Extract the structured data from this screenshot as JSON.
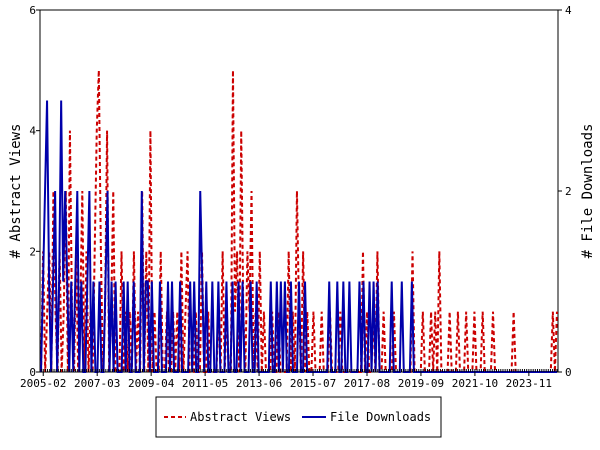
{
  "chart_data": {
    "type": "line",
    "xlabel": "",
    "ylabel_left": "# Abstract Views",
    "ylabel_right": "# File Downloads",
    "ylim_left": [
      0,
      6
    ],
    "ylim_right": [
      0,
      4
    ],
    "yticks_left": [
      "0",
      "2",
      "4",
      "6"
    ],
    "yticks_right": [
      "0",
      "2",
      "4"
    ],
    "x_tick_labels": [
      "2005-02",
      "2007-03",
      "2009-04",
      "2011-05",
      "2013-06",
      "2015-07",
      "2017-08",
      "2019-09",
      "2021-10",
      "2023-11"
    ],
    "x_start": "2005-01",
    "x_end": "2025-01",
    "grid": false,
    "legend_position": "bottom",
    "series": [
      {
        "name": "Abstract Views",
        "axis": "left",
        "color": "#cc0000",
        "style": "dashed",
        "values": [
          0,
          2,
          0,
          1,
          2,
          0,
          3,
          1,
          0,
          2,
          0,
          1,
          3,
          0,
          4,
          1,
          0,
          2,
          0,
          1,
          3,
          0,
          2,
          0,
          1,
          0,
          2,
          4,
          5,
          2,
          0,
          1,
          4,
          0,
          1,
          3,
          0,
          0,
          0,
          2,
          0,
          1,
          0,
          1,
          0,
          2,
          0,
          1,
          0,
          3,
          0,
          2,
          0,
          4,
          0,
          1,
          0,
          0,
          2,
          0,
          0,
          1,
          0,
          0,
          1,
          0,
          1,
          0,
          2,
          0,
          1,
          2,
          0,
          0,
          0,
          1,
          0,
          0,
          2,
          0,
          0,
          1,
          0,
          0,
          0,
          0,
          1,
          0,
          2,
          0,
          1,
          0,
          0,
          5,
          1,
          2,
          0,
          4,
          1,
          0,
          2,
          1,
          3,
          0,
          1,
          0,
          2,
          0,
          1,
          0,
          0,
          0,
          1,
          0,
          0,
          1,
          0,
          0,
          0,
          0,
          2,
          0,
          1,
          0,
          3,
          1,
          0,
          2,
          0,
          1,
          0,
          0,
          1,
          0,
          0,
          0,
          1,
          0,
          0,
          0,
          1,
          0,
          0,
          0,
          0,
          1,
          0,
          0,
          0,
          0,
          0,
          0,
          0,
          0,
          0,
          0,
          2,
          0,
          1,
          0,
          0,
          1,
          0,
          2,
          0,
          0,
          1,
          0,
          0,
          0,
          0,
          1,
          0,
          0,
          0,
          0,
          0,
          0,
          0,
          0,
          2,
          0,
          0,
          0,
          0,
          1,
          0,
          0,
          0,
          1,
          0,
          1,
          0,
          2,
          0,
          0,
          0,
          0,
          1,
          0,
          0,
          0,
          1,
          0,
          0,
          0,
          1,
          0,
          0,
          0,
          1,
          0,
          0,
          0,
          1,
          0,
          0,
          0,
          0,
          1,
          0,
          0,
          0,
          0,
          0,
          0,
          0,
          0,
          0,
          1,
          0,
          0,
          0,
          0,
          0,
          0,
          0,
          0,
          0,
          0,
          0,
          0,
          0,
          0,
          0,
          0,
          0,
          0,
          1,
          0,
          1
        ]
      },
      {
        "name": "File Downloads",
        "axis": "right",
        "color": "#0000aa",
        "style": "solid",
        "values": [
          0,
          1,
          2,
          3,
          1,
          0,
          1,
          2,
          0,
          1,
          3,
          1,
          2,
          1,
          0,
          1,
          0,
          1,
          2,
          0,
          1,
          0,
          0,
          1,
          2,
          0,
          1,
          0,
          0,
          1,
          0,
          0,
          1,
          2,
          0,
          1,
          0,
          1,
          0,
          0,
          0,
          1,
          0,
          1,
          0,
          0,
          1,
          0,
          0,
          0,
          2,
          0,
          1,
          1,
          0,
          1,
          0,
          0,
          0,
          1,
          0,
          0,
          0,
          1,
          0,
          1,
          0,
          0,
          0,
          1,
          0,
          0,
          0,
          0,
          1,
          0,
          1,
          0,
          0,
          2,
          1,
          0,
          1,
          0,
          0,
          1,
          0,
          0,
          1,
          0,
          0,
          0,
          1,
          0,
          0,
          1,
          0,
          0,
          1,
          0,
          1,
          0,
          0,
          0,
          1,
          0,
          0,
          1,
          0,
          0,
          0,
          0,
          0,
          0,
          1,
          0,
          0,
          1,
          0,
          1,
          0,
          1,
          0,
          0,
          1,
          0,
          0,
          0,
          1,
          0,
          0,
          1,
          0,
          0,
          0,
          0,
          0,
          0,
          0,
          0,
          0,
          0,
          0,
          1,
          0,
          0,
          0,
          1,
          0,
          0,
          1,
          0,
          0,
          1,
          0,
          0,
          0,
          0,
          1,
          0,
          1,
          0,
          0,
          1,
          0,
          1,
          0,
          1,
          0,
          0,
          0,
          0,
          0,
          0,
          1,
          0,
          0,
          0,
          0,
          1,
          0,
          0,
          0,
          0,
          1,
          0,
          0,
          0,
          0,
          0,
          0,
          0,
          0,
          0,
          0,
          0,
          0,
          0,
          0,
          0,
          0,
          0,
          0,
          0,
          0,
          0,
          0,
          0,
          0,
          0,
          0,
          0,
          0,
          0,
          0,
          0,
          0,
          0,
          0,
          0,
          0,
          0,
          0,
          0,
          0,
          0,
          0,
          0,
          0,
          0,
          0,
          0,
          0,
          0,
          0,
          0,
          0,
          0,
          0,
          0,
          0,
          0,
          0,
          0,
          0,
          0,
          0,
          0,
          0,
          0,
          0,
          0,
          0,
          0,
          0,
          0,
          0
        ]
      }
    ]
  }
}
